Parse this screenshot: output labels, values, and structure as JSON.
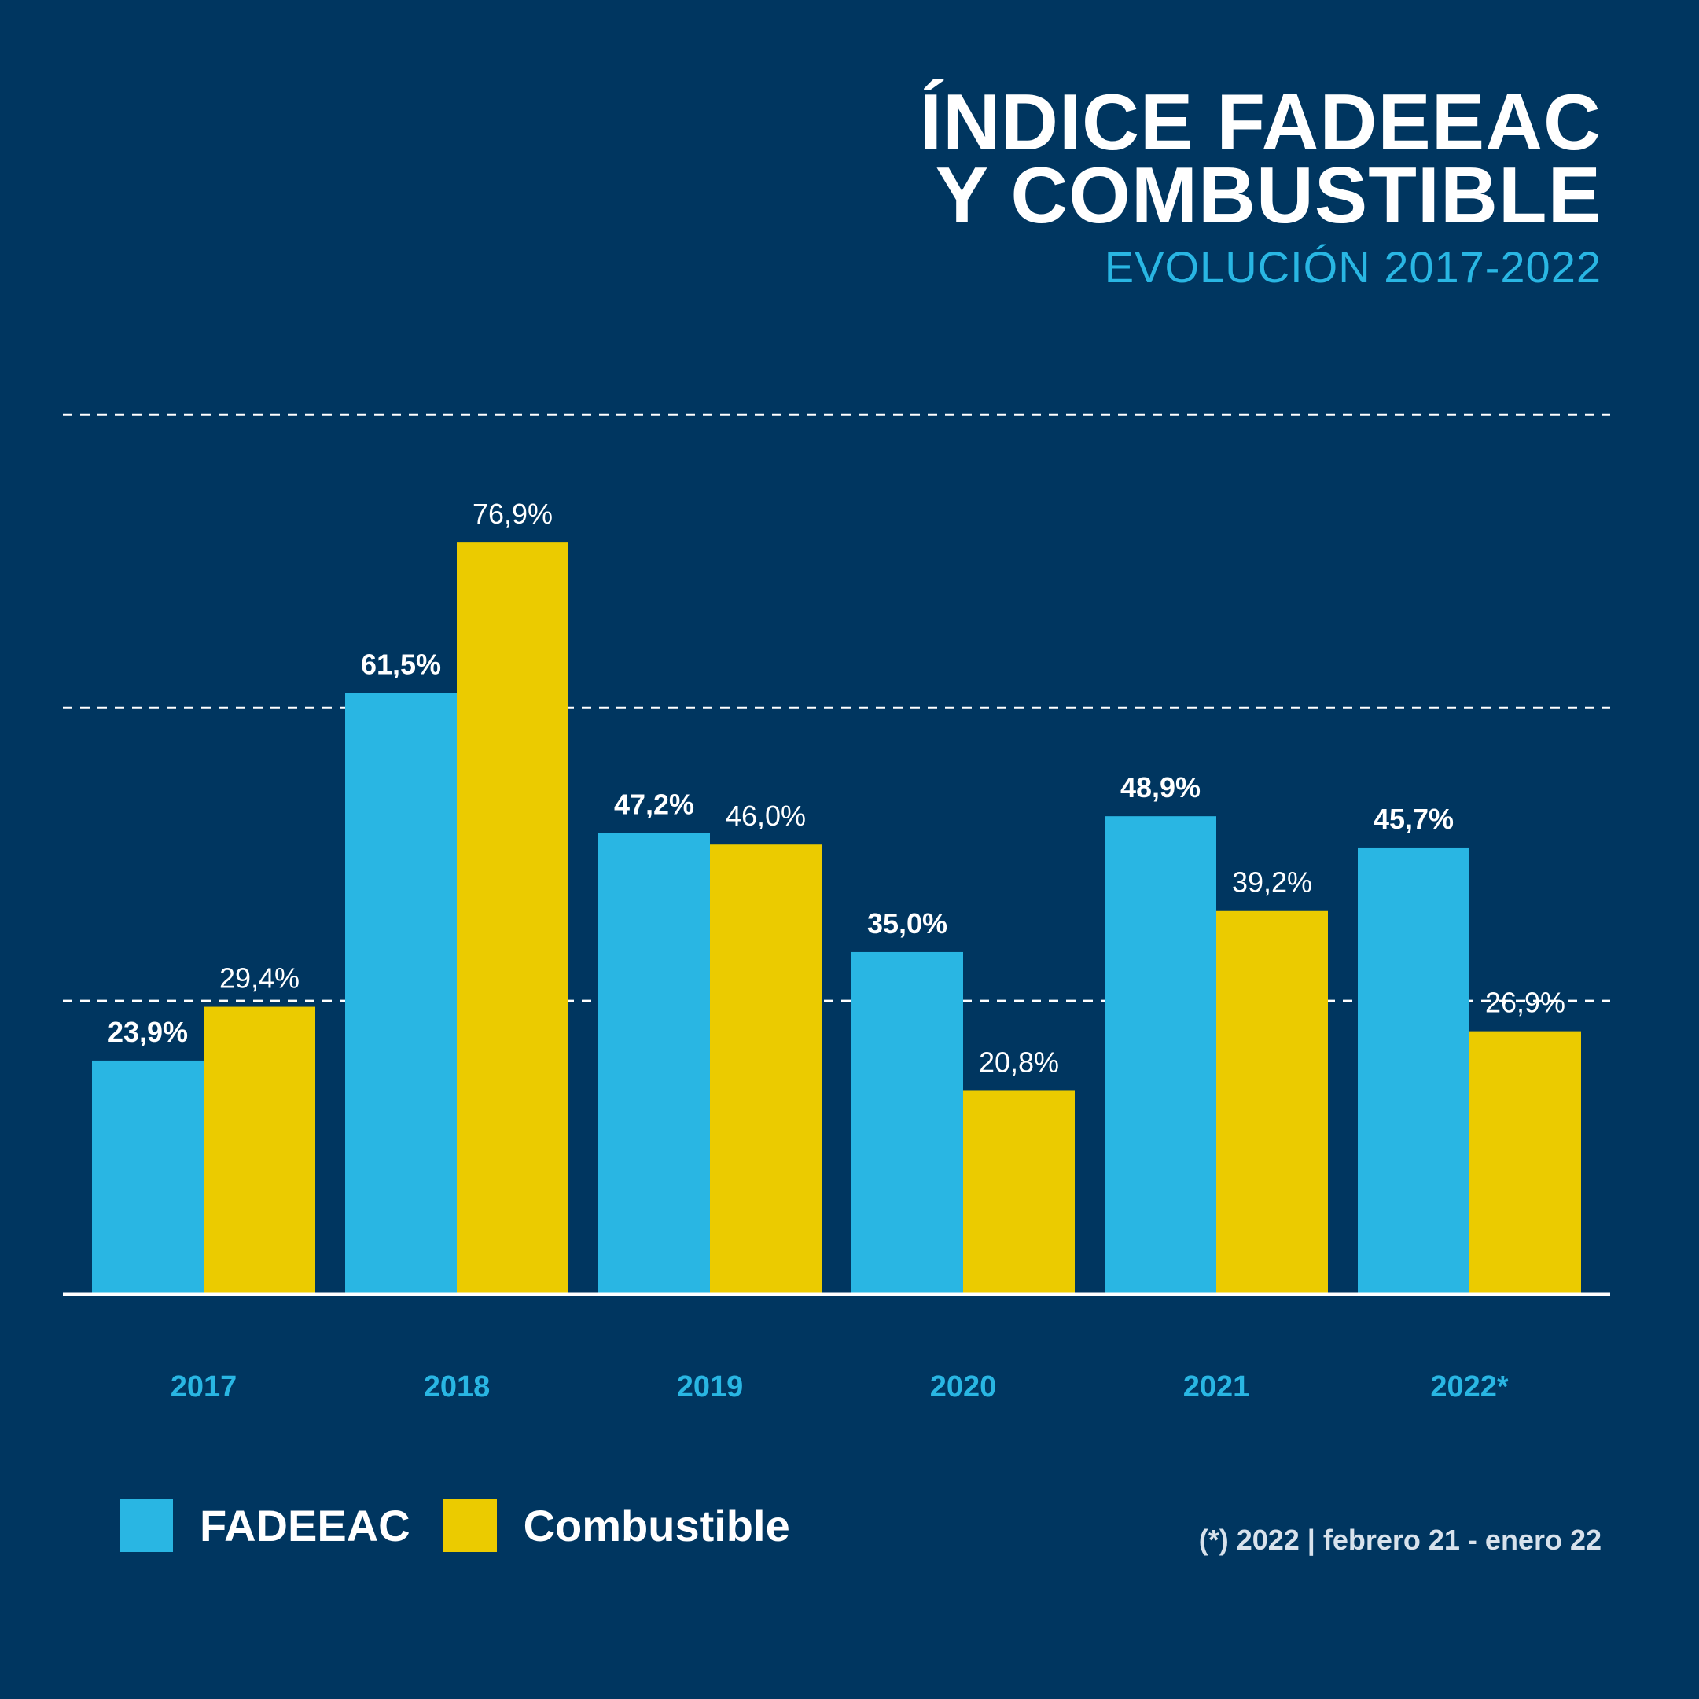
{
  "title": {
    "line1": "ÍNDICE FADEEAC",
    "line2": "Y COMBUSTIBLE",
    "subtitle": "EVOLUCIÓN 2017-2022"
  },
  "colors": {
    "background": "#003660",
    "fadeeac": "#29b6e3",
    "combustible": "#ebcb00",
    "axis": "#ffffff",
    "category_label": "#29b6e3"
  },
  "chart_data": {
    "type": "bar",
    "categories": [
      "2017",
      "2018",
      "2019",
      "2020",
      "2021",
      "2022*"
    ],
    "series": [
      {
        "name": "FADEEAC",
        "values": [
          23.9,
          61.5,
          47.2,
          35.0,
          48.9,
          45.7
        ],
        "labels": [
          "23,9%",
          "61,5%",
          "47,2%",
          "35,0%",
          "48,9%",
          "45,7%"
        ]
      },
      {
        "name": "Combustible",
        "values": [
          29.4,
          76.9,
          46.0,
          20.8,
          39.2,
          26.9
        ],
        "labels": [
          "29,4%",
          "76,9%",
          "46,0%",
          "20,8%",
          "39,2%",
          "26,9%"
        ]
      }
    ],
    "ylim": [
      0,
      90
    ],
    "grid": "dashed horizontal lines",
    "legend": "bottom-left"
  },
  "legend": {
    "fadeeac_label": "FADEEAC",
    "combustible_label": "Combustible"
  },
  "footnote": "(*) 2022 | febrero 21 - enero 22"
}
